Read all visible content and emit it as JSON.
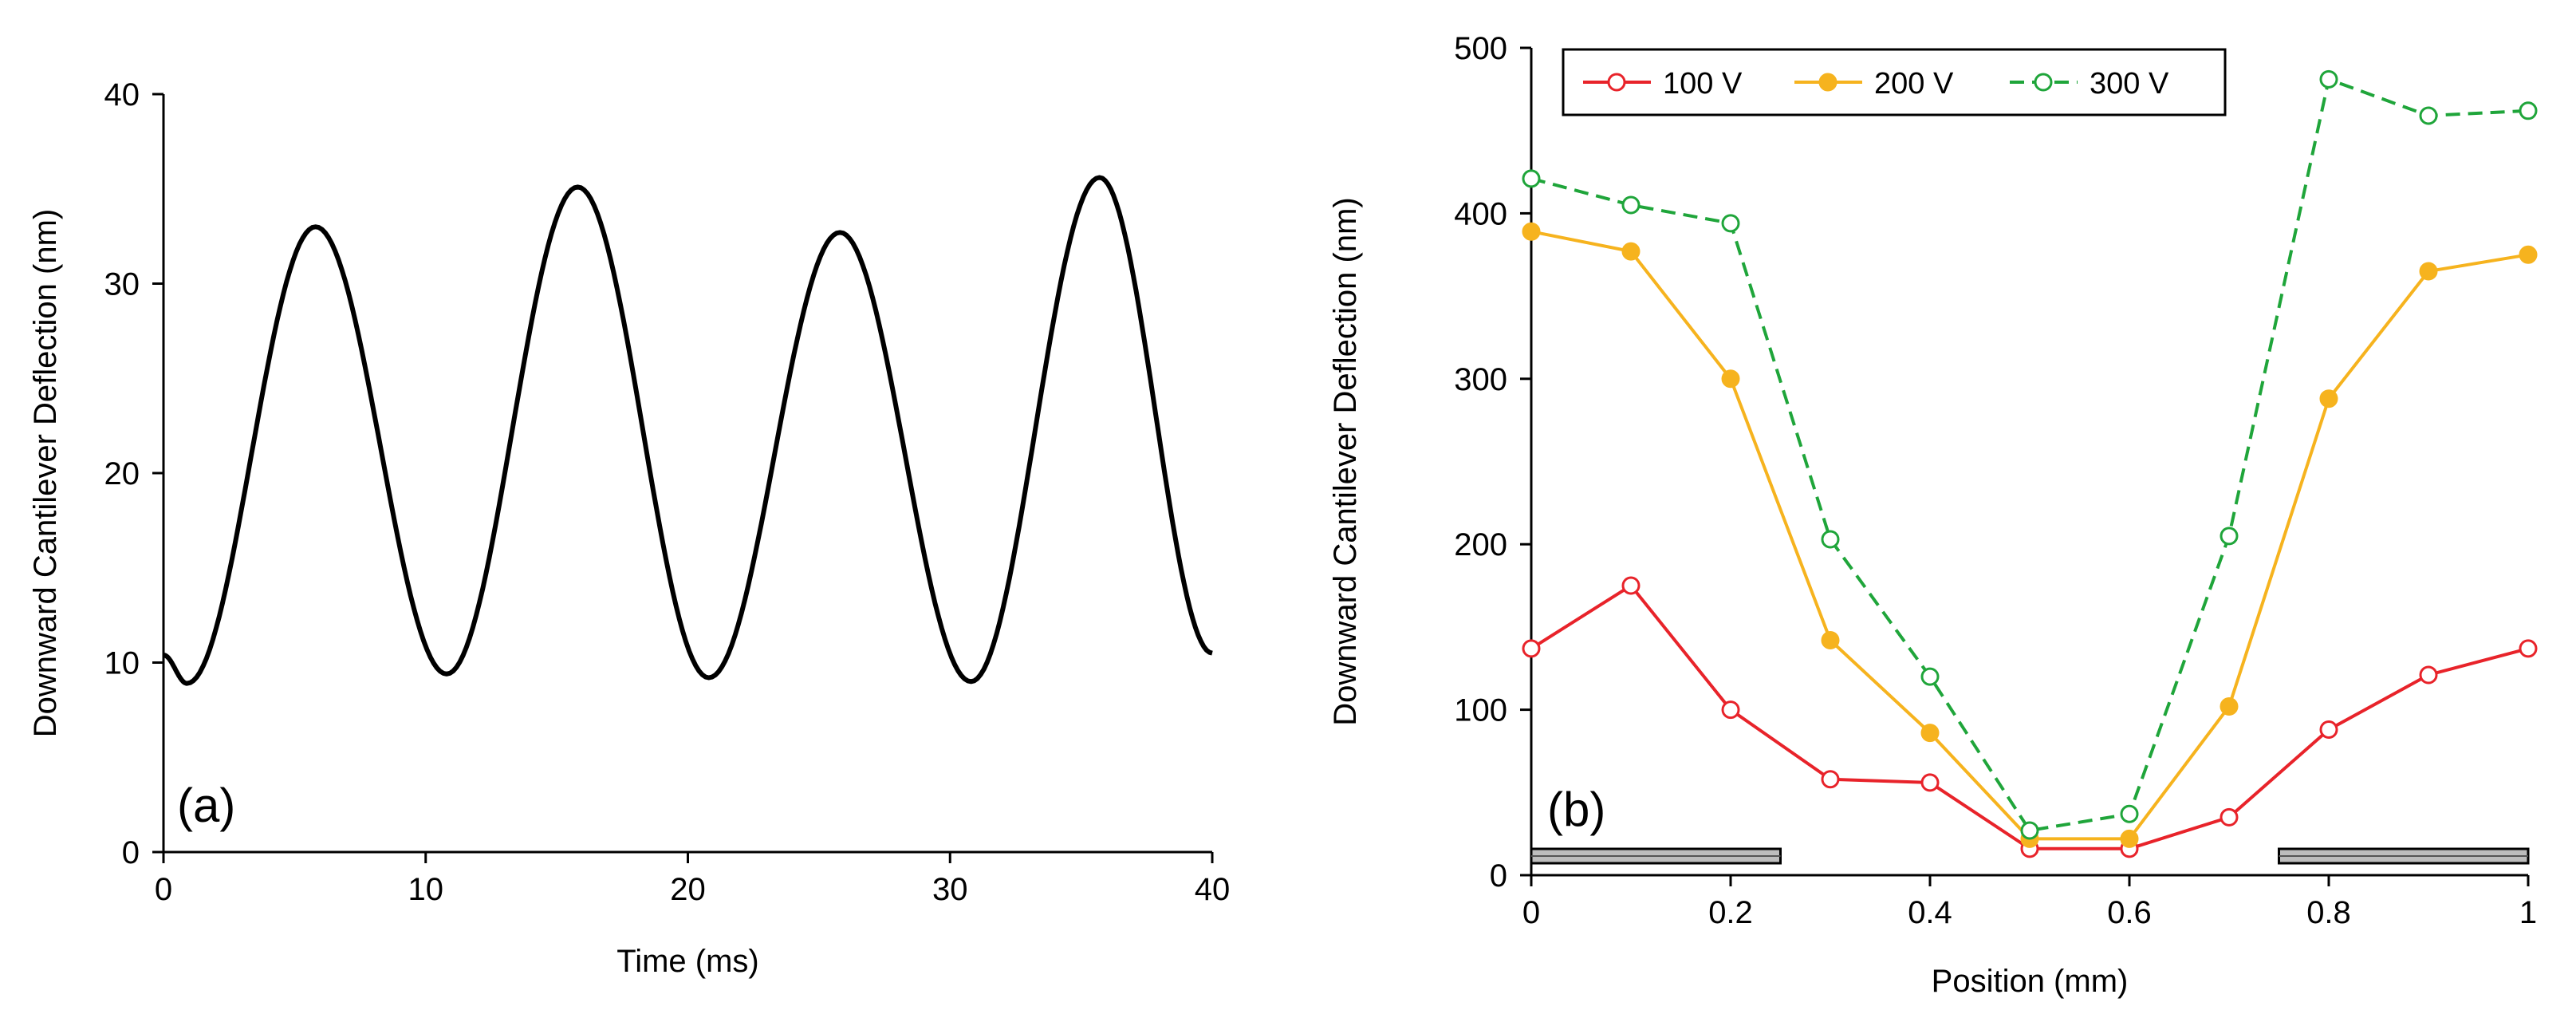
{
  "chart_data": [
    {
      "type": "line",
      "panel_label": "(a)",
      "xlabel": "Time (ms)",
      "ylabel": "Downward Cantilever Deflection (nm)",
      "xlim": [
        0,
        40
      ],
      "ylim": [
        0,
        40
      ],
      "xticks": [
        0,
        10,
        20,
        30,
        40
      ],
      "yticks": [
        0,
        10,
        20,
        30,
        40
      ],
      "legend": "none",
      "grid": false,
      "series": [
        {
          "name": "deflection",
          "color": "#000000",
          "x": [
            0,
            0.9,
            5.8,
            10.8,
            15.8,
            20.8,
            25.8,
            30.8,
            35.7,
            40
          ],
          "y": [
            10.4,
            8.9,
            33.0,
            9.4,
            35.1,
            9.2,
            32.7,
            9.0,
            35.6,
            10.5
          ]
        }
      ]
    },
    {
      "type": "line",
      "panel_label": "(b)",
      "xlabel": "Position (mm)",
      "ylabel": "Downward Cantilever Deflection (nm)",
      "xlim": [
        0,
        1
      ],
      "ylim": [
        0,
        500
      ],
      "xticks": [
        0,
        0.2,
        0.4,
        0.6,
        0.8,
        1
      ],
      "yticks": [
        0,
        100,
        200,
        300,
        400,
        500
      ],
      "legend": "top-left",
      "grid": false,
      "x": [
        0,
        0.1,
        0.2,
        0.3,
        0.4,
        0.5,
        0.6,
        0.7,
        0.8,
        0.9,
        1.0
      ],
      "series": [
        {
          "name": "100 V",
          "color": "#e8232a",
          "marker": "open-circle",
          "dash": "solid",
          "values": [
            137,
            175,
            100,
            58,
            56,
            16,
            16,
            35,
            88,
            121,
            137
          ]
        },
        {
          "name": "200 V",
          "color": "#f6b31e",
          "marker": "filled-circle",
          "dash": "solid",
          "values": [
            389,
            377,
            300,
            142,
            86,
            22,
            22,
            102,
            288,
            365,
            375
          ]
        },
        {
          "name": "300 V",
          "color": "#1fa53a",
          "marker": "open-circle",
          "dash": "dashed",
          "values": [
            421,
            405,
            394,
            203,
            120,
            27,
            37,
            205,
            481,
            459,
            462
          ]
        }
      ],
      "electrodes": [
        {
          "name": "left-electrode",
          "x_range": [
            0,
            0.25
          ]
        },
        {
          "name": "right-electrode",
          "x_range": [
            0.75,
            1.0
          ]
        }
      ]
    }
  ]
}
